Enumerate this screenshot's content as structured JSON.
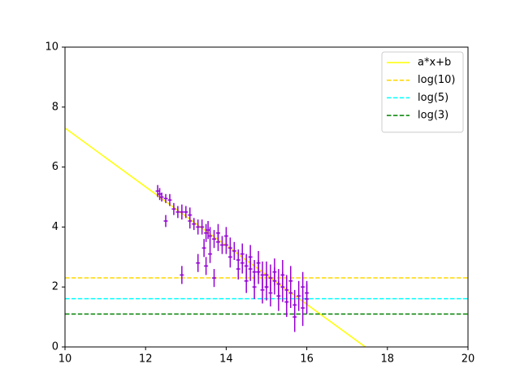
{
  "chart_data": {
    "type": "line",
    "xlim": [
      10,
      20
    ],
    "xticks": [
      10,
      12,
      14,
      16,
      18,
      20
    ],
    "ylim": [
      0,
      10
    ],
    "yticks": [
      0,
      2,
      4,
      6,
      8,
      10
    ],
    "grid": false,
    "legend": "upper right",
    "series": [
      {
        "name": "a*x+b",
        "color": "#ffff00",
        "style": "solid",
        "x": [
          10,
          17.45
        ],
        "values": [
          7.3,
          0
        ]
      },
      {
        "name": "log(10)",
        "color": "#ffd700",
        "style": "dashed",
        "x": [
          10,
          20
        ],
        "values": [
          2.303,
          2.303
        ]
      },
      {
        "name": "log(5)",
        "color": "#00ffff",
        "style": "dashed",
        "x": [
          10,
          20
        ],
        "values": [
          1.609,
          1.609
        ]
      },
      {
        "name": "log(3)",
        "color": "#008000",
        "style": "dashed",
        "x": [
          10,
          20
        ],
        "values": [
          1.099,
          1.099
        ]
      },
      {
        "type": "errorbar",
        "color": "#9400d3",
        "xerr": 0.05,
        "x": [
          12.3,
          12.35,
          12.4,
          12.5,
          12.5,
          12.6,
          12.7,
          12.8,
          12.9,
          12.9,
          13.0,
          13.1,
          13.1,
          13.2,
          13.3,
          13.3,
          13.4,
          13.45,
          13.5,
          13.5,
          13.55,
          13.6,
          13.6,
          13.7,
          13.7,
          13.8,
          13.8,
          13.9,
          14.0,
          14.0,
          14.1,
          14.1,
          14.2,
          14.3,
          14.3,
          14.4,
          14.4,
          14.5,
          14.5,
          14.6,
          14.6,
          14.7,
          14.7,
          14.8,
          14.8,
          14.9,
          14.9,
          15.0,
          15.0,
          15.1,
          15.1,
          15.2,
          15.2,
          15.3,
          15.3,
          15.4,
          15.4,
          15.5,
          15.5,
          15.6,
          15.6,
          15.7,
          15.7,
          15.8,
          15.9,
          15.9,
          16.0,
          16.0
        ],
        "values": [
          5.2,
          5.1,
          5.0,
          4.95,
          4.2,
          4.9,
          4.6,
          4.5,
          4.5,
          2.4,
          4.5,
          4.4,
          4.2,
          4.1,
          2.8,
          4.0,
          4.0,
          3.3,
          3.8,
          2.7,
          3.9,
          3.7,
          3.1,
          3.6,
          2.3,
          3.5,
          3.8,
          3.4,
          3.4,
          3.7,
          3.3,
          3.0,
          3.2,
          2.9,
          2.6,
          2.8,
          3.1,
          2.7,
          2.2,
          2.6,
          3.0,
          2.5,
          2.0,
          2.5,
          2.8,
          2.4,
          1.9,
          2.4,
          2.0,
          2.3,
          1.8,
          2.2,
          2.5,
          2.1,
          1.7,
          2.0,
          2.4,
          1.9,
          1.5,
          1.8,
          2.2,
          1.4,
          1.0,
          1.7,
          1.3,
          2.0,
          1.6,
          1.8
        ],
        "yerr": [
          0.2,
          0.2,
          0.15,
          0.15,
          0.2,
          0.2,
          0.2,
          0.2,
          0.25,
          0.3,
          0.2,
          0.25,
          0.25,
          0.2,
          0.3,
          0.25,
          0.25,
          0.3,
          0.3,
          0.3,
          0.3,
          0.3,
          0.3,
          0.3,
          0.3,
          0.3,
          0.3,
          0.3,
          0.3,
          0.3,
          0.35,
          0.35,
          0.3,
          0.35,
          0.35,
          0.35,
          0.35,
          0.4,
          0.4,
          0.4,
          0.4,
          0.4,
          0.4,
          0.4,
          0.4,
          0.45,
          0.45,
          0.45,
          0.45,
          0.45,
          0.45,
          0.45,
          0.45,
          0.5,
          0.5,
          0.5,
          0.5,
          0.5,
          0.5,
          0.5,
          0.5,
          0.5,
          0.5,
          0.5,
          0.6,
          0.5,
          0.5,
          0.4
        ]
      }
    ]
  }
}
